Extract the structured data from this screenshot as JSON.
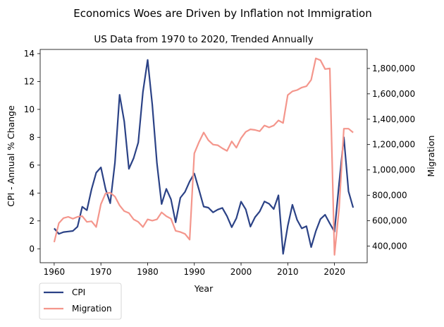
{
  "chart_data": {
    "type": "line",
    "title": "Economics Woes are Driven by Inflation not Immigration",
    "subtitle": "US Data from 1970 to 2020, Trended Annually",
    "xlabel": "Year",
    "ylabel_left": "CPI - Annual % Change",
    "ylabel_right": "Migration",
    "xlim": [
      1957,
      2027
    ],
    "ylim_left": [
      -1,
      14.3
    ],
    "ylim_right": [
      268000,
      1950000
    ],
    "x_ticks": [
      1960,
      1970,
      1980,
      1990,
      2000,
      2010,
      2020
    ],
    "y_left_ticks": [
      0,
      2,
      4,
      6,
      8,
      10,
      12,
      14
    ],
    "y_right_ticks": [
      {
        "value": 400000,
        "label": "400,000"
      },
      {
        "value": 600000,
        "label": "600,000"
      },
      {
        "value": 800000,
        "label": "800,000"
      },
      {
        "value": 1000000,
        "label": "1,000,000"
      },
      {
        "value": 1200000,
        "label": "1,200,000"
      },
      {
        "value": 1400000,
        "label": "1,400,000"
      },
      {
        "value": 1600000,
        "label": "1,600,000"
      },
      {
        "value": 1800000,
        "label": "1,800,000"
      }
    ],
    "grid": false,
    "legend_position": "below-left",
    "x": [
      1960,
      1961,
      1962,
      1963,
      1964,
      1965,
      1966,
      1967,
      1968,
      1969,
      1970,
      1971,
      1972,
      1973,
      1974,
      1975,
      1976,
      1977,
      1978,
      1979,
      1980,
      1981,
      1982,
      1983,
      1984,
      1985,
      1986,
      1987,
      1988,
      1989,
      1990,
      1991,
      1992,
      1993,
      1994,
      1995,
      1996,
      1997,
      1998,
      1999,
      2000,
      2001,
      2002,
      2003,
      2004,
      2005,
      2006,
      2007,
      2008,
      2009,
      2010,
      2011,
      2012,
      2013,
      2014,
      2015,
      2016,
      2017,
      2018,
      2019,
      2020,
      2021,
      2022,
      2023,
      2024
    ],
    "series": [
      {
        "name": "CPI",
        "axis": "left",
        "color": "#2b4286",
        "values": [
          1.46,
          1.07,
          1.2,
          1.24,
          1.28,
          1.59,
          3.02,
          2.77,
          4.27,
          5.46,
          5.84,
          4.29,
          3.27,
          6.18,
          11.05,
          9.14,
          5.74,
          6.5,
          7.63,
          11.25,
          13.55,
          10.33,
          6.13,
          3.21,
          4.3,
          3.55,
          1.9,
          3.66,
          4.08,
          4.83,
          5.4,
          4.23,
          3.03,
          2.95,
          2.61,
          2.81,
          2.93,
          2.34,
          1.55,
          2.19,
          3.38,
          2.83,
          1.59,
          2.27,
          2.68,
          3.39,
          3.23,
          2.85,
          3.84,
          -0.36,
          1.64,
          3.16,
          2.07,
          1.46,
          1.62,
          0.12,
          1.26,
          2.13,
          2.44,
          1.81,
          1.23,
          4.7,
          8.0,
          4.12,
          2.95
        ]
      },
      {
        "name": "Migration",
        "axis": "right",
        "color": "#f4968c",
        "values": [
          430000,
          580000,
          620000,
          630000,
          615000,
          630000,
          635000,
          590000,
          595000,
          550000,
          730000,
          815000,
          820000,
          790000,
          720000,
          675000,
          660000,
          610000,
          590000,
          550000,
          610000,
          600000,
          610000,
          665000,
          635000,
          615000,
          520000,
          510000,
          495000,
          450000,
          1130000,
          1220000,
          1295000,
          1235000,
          1200000,
          1195000,
          1170000,
          1150000,
          1225000,
          1175000,
          1250000,
          1300000,
          1320000,
          1315000,
          1305000,
          1350000,
          1335000,
          1350000,
          1390000,
          1370000,
          1590000,
          1620000,
          1630000,
          1650000,
          1660000,
          1710000,
          1880000,
          1865000,
          1795000,
          1800000,
          330000,
          700000,
          1325000,
          1325000,
          1295000
        ]
      }
    ]
  }
}
